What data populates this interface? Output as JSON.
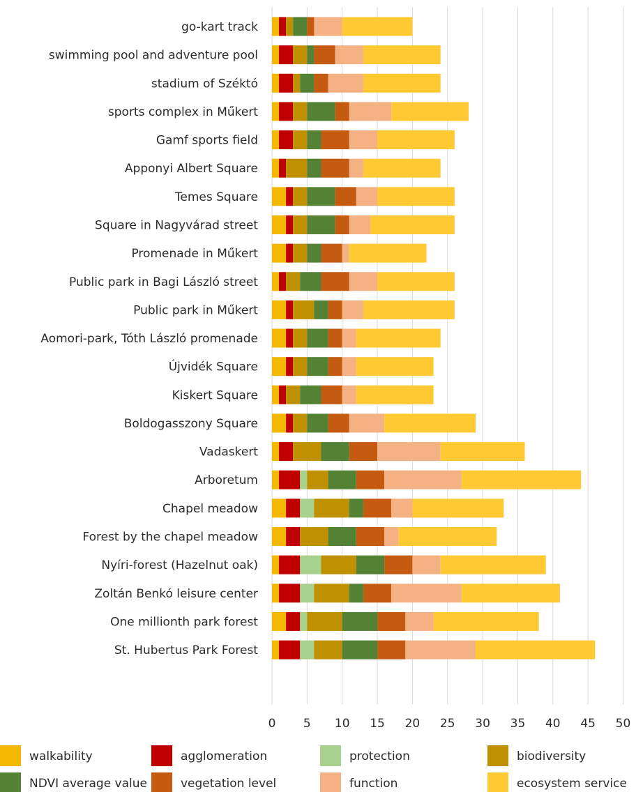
{
  "chart_data": {
    "type": "bar",
    "orientation": "horizontal",
    "stacked": true,
    "categories": [
      "go-kart track",
      "swimming pool and adventure pool",
      "stadium of Széktó",
      "sports complex in Műkert",
      "Gamf sports field",
      "Apponyi Albert Square",
      "Temes Square",
      "Square in Nagyvárad street",
      "Promenade in Műkert",
      "Public park in Bagi László street",
      "Public park in Műkert",
      "Aomori-park, Tóth László promenade",
      "Újvidék Square",
      "Kiskert Square",
      "Boldogasszony Square",
      "Vadaskert",
      "Arboretum",
      "Chapel meadow",
      "Forest by the chapel meadow",
      "Nyíri-forest (Hazelnut oak)",
      "Zoltán Benkó leisure center",
      "One millionth park forest",
      "St. Hubertus Park Forest"
    ],
    "series": [
      {
        "name": "walkability",
        "color": "#f5b800",
        "values": [
          1,
          1,
          1,
          1,
          1,
          1,
          2,
          2,
          2,
          1,
          2,
          2,
          2,
          1,
          2,
          1,
          1,
          2,
          2,
          1,
          1,
          2,
          1
        ]
      },
      {
        "name": "agglomeration",
        "color": "#c00000",
        "values": [
          1,
          2,
          2,
          2,
          2,
          1,
          1,
          1,
          1,
          1,
          1,
          1,
          1,
          1,
          1,
          2,
          3,
          2,
          2,
          3,
          3,
          2,
          3
        ]
      },
      {
        "name": "protection",
        "color": "#a9d18e",
        "values": [
          0,
          0,
          0,
          0,
          0,
          0,
          0,
          0,
          0,
          0,
          0,
          0,
          0,
          0,
          0,
          0,
          1,
          2,
          0,
          3,
          2,
          1,
          2
        ]
      },
      {
        "name": "biodiversity",
        "color": "#bf9000",
        "values": [
          1,
          2,
          1,
          2,
          2,
          3,
          2,
          2,
          2,
          2,
          3,
          2,
          2,
          2,
          2,
          4,
          3,
          5,
          4,
          5,
          5,
          5,
          4
        ]
      },
      {
        "name": "NDVI average value",
        "color": "#548235",
        "values": [
          2,
          1,
          2,
          4,
          2,
          2,
          4,
          4,
          2,
          3,
          2,
          3,
          3,
          3,
          3,
          4,
          4,
          2,
          4,
          4,
          2,
          5,
          5
        ]
      },
      {
        "name": "vegetation level",
        "color": "#c55a11",
        "values": [
          1,
          3,
          2,
          2,
          4,
          4,
          3,
          2,
          3,
          4,
          2,
          2,
          2,
          3,
          3,
          4,
          4,
          4,
          4,
          4,
          4,
          4,
          4
        ]
      },
      {
        "name": "function",
        "color": "#f4b183",
        "values": [
          4,
          4,
          5,
          6,
          4,
          2,
          3,
          3,
          1,
          4,
          3,
          2,
          2,
          2,
          5,
          9,
          11,
          3,
          2,
          4,
          10,
          4,
          10
        ]
      },
      {
        "name": "ecosystem service",
        "color": "#ffc933",
        "values": [
          10,
          11,
          11,
          11,
          11,
          11,
          11,
          12,
          11,
          11,
          13,
          12,
          11,
          11,
          13,
          12,
          17,
          13,
          14,
          15,
          14,
          15,
          17
        ]
      }
    ],
    "x_ticks": [
      "0",
      "5",
      "10",
      "15",
      "20",
      "25",
      "30",
      "35",
      "40",
      "45",
      "50"
    ],
    "xlim": [
      0,
      50
    ],
    "grid": true,
    "legend_position": "bottom",
    "title": "",
    "xlabel": "",
    "ylabel": ""
  }
}
